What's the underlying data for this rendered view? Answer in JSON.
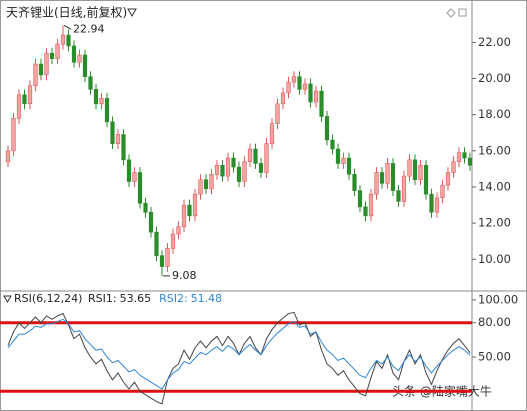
{
  "chart_data": [
    {
      "type": "candlestick",
      "title": "天齐锂业(日线,前复权)",
      "open": [
        15.4,
        16.0,
        17.8,
        19.1,
        18.6,
        19.6,
        20.8,
        20.2,
        21.4,
        21.1,
        21.9,
        22.4,
        21.8,
        20.9,
        21.3,
        20.1,
        19.4,
        18.6,
        18.9,
        17.6,
        16.4,
        16.9,
        15.5,
        14.3,
        14.8,
        13.1,
        12.6,
        11.5,
        10.2,
        9.6,
        10.6,
        11.4,
        11.8,
        13.0,
        12.4,
        13.6,
        14.4,
        13.9,
        14.7,
        15.2,
        14.6,
        15.6,
        15.1,
        14.3,
        15.4,
        16.1,
        15.3,
        14.8,
        16.4,
        17.5,
        18.6,
        19.2,
        19.8,
        20.1,
        19.4,
        19.7,
        18.7,
        19.3,
        17.9,
        16.6,
        16.1,
        15.3,
        15.6,
        14.7,
        13.8,
        12.9,
        12.4,
        13.6,
        14.8,
        14.2,
        15.3,
        13.8,
        13.2,
        14.6,
        15.5,
        14.4,
        15.2,
        13.6,
        12.6,
        13.4,
        14.1,
        14.8,
        15.4,
        15.9,
        15.6
      ],
      "high": [
        16.3,
        18.1,
        19.4,
        19.4,
        19.9,
        21.1,
        21.1,
        21.7,
        21.7,
        22.2,
        22.94,
        22.7,
        22.1,
        21.6,
        21.6,
        20.4,
        19.7,
        19.2,
        19.2,
        17.9,
        17.2,
        17.2,
        15.8,
        15.1,
        15.1,
        13.4,
        12.9,
        11.8,
        10.5,
        10.9,
        11.7,
        12.1,
        13.3,
        13.3,
        13.9,
        14.7,
        14.7,
        15.0,
        15.5,
        15.5,
        15.9,
        15.9,
        15.4,
        15.7,
        16.4,
        16.4,
        15.6,
        16.7,
        17.8,
        18.9,
        19.5,
        20.1,
        20.4,
        20.4,
        20.0,
        20.0,
        19.6,
        19.6,
        18.2,
        16.9,
        16.4,
        15.9,
        15.9,
        15.0,
        14.1,
        13.2,
        13.9,
        15.1,
        15.1,
        15.6,
        15.6,
        14.1,
        14.9,
        15.8,
        15.8,
        15.5,
        15.5,
        13.9,
        13.7,
        14.4,
        15.1,
        15.7,
        16.2,
        16.2,
        15.9
      ],
      "low": [
        15.1,
        15.7,
        17.5,
        18.3,
        18.3,
        19.3,
        19.9,
        19.9,
        20.8,
        20.8,
        21.6,
        21.5,
        20.6,
        20.6,
        19.8,
        19.1,
        18.3,
        18.3,
        17.3,
        16.1,
        16.1,
        15.2,
        14.0,
        14.0,
        12.8,
        12.3,
        11.2,
        9.9,
        9.08,
        9.3,
        10.3,
        11.1,
        11.5,
        12.1,
        12.1,
        13.3,
        13.6,
        13.6,
        14.4,
        14.3,
        14.3,
        14.8,
        14.0,
        14.0,
        15.1,
        15.0,
        14.5,
        14.5,
        16.1,
        17.2,
        18.3,
        18.9,
        19.5,
        19.1,
        19.1,
        18.4,
        18.4,
        17.6,
        16.3,
        15.8,
        15.0,
        15.0,
        14.4,
        13.5,
        12.6,
        12.1,
        12.1,
        13.3,
        13.9,
        13.9,
        13.5,
        12.9,
        12.9,
        14.3,
        14.1,
        14.1,
        13.3,
        12.3,
        12.3,
        13.1,
        13.8,
        14.5,
        15.1,
        15.3,
        14.9
      ],
      "close": [
        16.0,
        17.8,
        19.1,
        18.6,
        19.6,
        20.8,
        20.2,
        21.4,
        21.1,
        21.9,
        22.4,
        21.8,
        20.9,
        21.3,
        20.1,
        19.4,
        18.6,
        18.9,
        17.6,
        16.4,
        16.9,
        15.5,
        14.3,
        14.8,
        13.1,
        12.6,
        11.5,
        10.2,
        9.6,
        10.6,
        11.4,
        11.8,
        13.0,
        12.4,
        13.6,
        14.4,
        13.9,
        14.7,
        15.2,
        14.6,
        15.6,
        15.1,
        14.3,
        15.4,
        16.1,
        15.3,
        14.8,
        16.4,
        17.5,
        18.6,
        19.2,
        19.8,
        20.1,
        19.4,
        19.7,
        18.7,
        19.3,
        17.9,
        16.6,
        16.1,
        15.3,
        15.6,
        14.7,
        13.8,
        12.9,
        12.4,
        13.6,
        14.8,
        14.2,
        15.3,
        13.8,
        13.2,
        14.6,
        15.5,
        14.4,
        15.2,
        13.6,
        12.6,
        13.4,
        14.1,
        14.8,
        15.4,
        15.9,
        15.6,
        15.2
      ],
      "up_color": "#f4a3a3",
      "up_edge": "#e05a5a",
      "down_color": "#2b8c2b",
      "ylim": [
        8.3,
        23.9
      ],
      "yticks": [
        {
          "value": 10,
          "label": "10.00"
        },
        {
          "value": 12,
          "label": "12.00"
        },
        {
          "value": 14,
          "label": "14.00"
        },
        {
          "value": 16,
          "label": "16.00"
        },
        {
          "value": 18,
          "label": "18.00"
        },
        {
          "value": 20,
          "label": "20.00"
        },
        {
          "value": 22,
          "label": "22.00"
        }
      ],
      "annotations": [
        {
          "label": "22.94",
          "value": 22.94,
          "at": "high"
        },
        {
          "label": "9.08",
          "value": 9.08,
          "at": "low"
        }
      ]
    },
    {
      "type": "line",
      "title": "RSI(6,12,24)",
      "series": [
        {
          "name": "RSI1:",
          "value_label": "53.65",
          "color": "#444444",
          "values": [
            60,
            72,
            80,
            75,
            80,
            85,
            80,
            86,
            83,
            86,
            88,
            78,
            66,
            70,
            58,
            50,
            44,
            48,
            38,
            30,
            36,
            28,
            22,
            28,
            20,
            17,
            14,
            11,
            9,
            30,
            40,
            44,
            56,
            48,
            58,
            64,
            58,
            64,
            68,
            60,
            68,
            62,
            52,
            62,
            68,
            58,
            52,
            66,
            74,
            80,
            84,
            88,
            89,
            78,
            80,
            68,
            72,
            56,
            44,
            40,
            34,
            38,
            30,
            24,
            18,
            16,
            32,
            46,
            40,
            52,
            36,
            30,
            46,
            56,
            44,
            52,
            36,
            26,
            38,
            48,
            56,
            62,
            66,
            60,
            53.65
          ]
        },
        {
          "name": "RSI2:",
          "value_label": "51.48",
          "color": "#2f86d8",
          "values": [
            58,
            64,
            70,
            70,
            73,
            77,
            76,
            79,
            79,
            81,
            83,
            79,
            72,
            73,
            66,
            61,
            56,
            57,
            50,
            45,
            47,
            42,
            37,
            39,
            34,
            31,
            28,
            25,
            22,
            30,
            36,
            39,
            46,
            44,
            49,
            54,
            52,
            56,
            59,
            55,
            60,
            57,
            52,
            57,
            61,
            56,
            52,
            60,
            66,
            71,
            75,
            79,
            81,
            76,
            77,
            70,
            72,
            63,
            56,
            52,
            47,
            49,
            44,
            39,
            34,
            32,
            40,
            47,
            44,
            50,
            42,
            38,
            46,
            52,
            46,
            50,
            42,
            36,
            42,
            47,
            52,
            56,
            59,
            56,
            51.48
          ]
        }
      ],
      "ylim": [
        8,
        106
      ],
      "yticks": [
        {
          "value": 50,
          "label": "50.00"
        },
        {
          "value": 80,
          "label": "80.00"
        },
        {
          "value": 100,
          "label": "100.00"
        }
      ],
      "ref_lines": [
        80,
        20
      ],
      "ref_color": "#e01010"
    }
  ],
  "watermark": "头条 @陆家嘴大牛"
}
